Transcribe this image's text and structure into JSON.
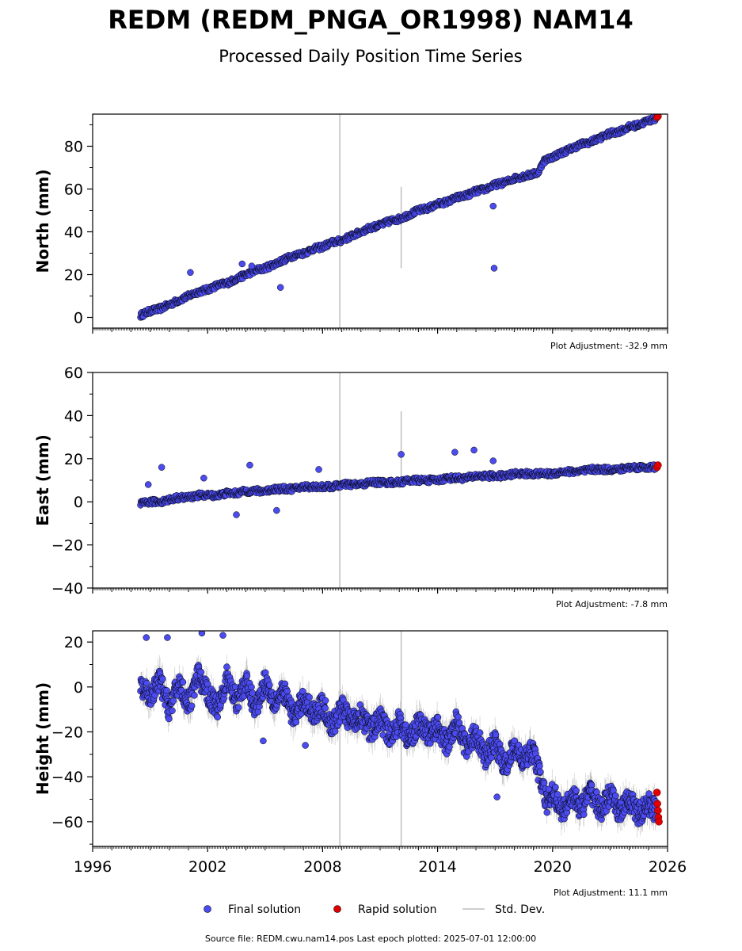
{
  "title": "REDM (REDM_PNGA_OR1998) NAM14",
  "subtitle": "Processed Daily Position Time Series",
  "footer": "Source file: REDM.cwu.nam14.pos  Last epoch plotted: 2025-07-01 12:00:00",
  "legend": {
    "final": "Final solution",
    "rapid": "Rapid solution",
    "std": "Std. Dev."
  },
  "colors": {
    "final": "#4b4bf0",
    "rapid": "#e00000",
    "std": "#bfbfbf",
    "marker_edge": "#000000"
  },
  "chart_data": [
    {
      "type": "scatter",
      "ylabel": "North (mm)",
      "adjustment": "Plot Adjustment: -32.9 mm",
      "xlim": [
        1996,
        2026
      ],
      "ylim": [
        -5,
        95
      ],
      "yticks": [
        0,
        20,
        40,
        60,
        80
      ],
      "xticks": [
        1996,
        2002,
        2008,
        2014,
        2020,
        2026
      ],
      "show_xtick_labels": false,
      "series": [
        {
          "name": "Final solution",
          "points": [
            [
              1998.5,
              1
            ],
            [
              1999.0,
              3
            ],
            [
              1999.5,
              4
            ],
            [
              2000.0,
              6
            ],
            [
              2000.5,
              8
            ],
            [
              2001.0,
              10
            ],
            [
              2001.5,
              12
            ],
            [
              2002.0,
              13
            ],
            [
              2002.5,
              15
            ],
            [
              2003.0,
              16
            ],
            [
              2003.5,
              18
            ],
            [
              2004.0,
              20
            ],
            [
              2004.5,
              22
            ],
            [
              2005.0,
              23
            ],
            [
              2005.5,
              25
            ],
            [
              2006.0,
              27
            ],
            [
              2006.5,
              29
            ],
            [
              2007.0,
              30
            ],
            [
              2007.5,
              32
            ],
            [
              2008.0,
              33
            ],
            [
              2008.5,
              35
            ],
            [
              2009.0,
              36
            ],
            [
              2009.5,
              38
            ],
            [
              2010.0,
              40
            ],
            [
              2010.5,
              42
            ],
            [
              2011.0,
              43
            ],
            [
              2011.5,
              45
            ],
            [
              2012.0,
              46
            ],
            [
              2012.5,
              48
            ],
            [
              2013.0,
              50
            ],
            [
              2013.5,
              51
            ],
            [
              2014.0,
              53
            ],
            [
              2014.5,
              54
            ],
            [
              2015.0,
              56
            ],
            [
              2015.5,
              57
            ],
            [
              2016.0,
              59
            ],
            [
              2016.5,
              60
            ],
            [
              2017.0,
              62
            ],
            [
              2017.5,
              63
            ],
            [
              2018.0,
              65
            ],
            [
              2018.5,
              66
            ],
            [
              2019.0,
              67
            ],
            [
              2019.3,
              68
            ],
            [
              2019.5,
              73
            ],
            [
              2020.0,
              75
            ],
            [
              2020.5,
              77
            ],
            [
              2021.0,
              79
            ],
            [
              2021.5,
              81
            ],
            [
              2022.0,
              82
            ],
            [
              2022.5,
              84
            ],
            [
              2023.0,
              86
            ],
            [
              2023.5,
              87
            ],
            [
              2024.0,
              89
            ],
            [
              2024.5,
              90
            ],
            [
              2025.0,
              92
            ],
            [
              2025.4,
              93
            ]
          ]
        },
        {
          "name": "Rapid solution",
          "points": [
            [
              2025.45,
              93.5
            ],
            [
              2025.5,
              94
            ]
          ]
        }
      ],
      "outliers": [
        [
          2001.1,
          21
        ],
        [
          2003.8,
          25
        ],
        [
          2004.3,
          24
        ],
        [
          2005.8,
          14
        ],
        [
          2016.9,
          52
        ],
        [
          2016.95,
          23
        ]
      ],
      "std_lines": [
        [
          2008.9,
          -5,
          95
        ],
        [
          2012.1,
          23,
          61
        ]
      ]
    },
    {
      "type": "scatter",
      "ylabel": "East (mm)",
      "adjustment": "Plot Adjustment: -7.8 mm",
      "xlim": [
        1996,
        2026
      ],
      "ylim": [
        -40,
        60
      ],
      "yticks": [
        -40,
        -20,
        0,
        20,
        40,
        60
      ],
      "xticks": [
        1996,
        2002,
        2008,
        2014,
        2020,
        2026
      ],
      "show_xtick_labels": false,
      "series": [
        {
          "name": "Final solution",
          "points": [
            [
              1998.5,
              -1
            ],
            [
              1999.0,
              0
            ],
            [
              1999.5,
              0
            ],
            [
              2000.0,
              1
            ],
            [
              2000.5,
              2
            ],
            [
              2001.0,
              2
            ],
            [
              2001.5,
              3
            ],
            [
              2002.0,
              3
            ],
            [
              2002.5,
              3
            ],
            [
              2003.0,
              4
            ],
            [
              2003.5,
              4
            ],
            [
              2004.0,
              5
            ],
            [
              2004.5,
              5
            ],
            [
              2005.0,
              5
            ],
            [
              2005.5,
              6
            ],
            [
              2006.0,
              6
            ],
            [
              2006.5,
              6
            ],
            [
              2007.0,
              7
            ],
            [
              2007.5,
              7
            ],
            [
              2008.0,
              7
            ],
            [
              2008.5,
              7
            ],
            [
              2009.0,
              8
            ],
            [
              2009.5,
              8
            ],
            [
              2010.0,
              8
            ],
            [
              2010.5,
              9
            ],
            [
              2011.0,
              9
            ],
            [
              2011.5,
              9
            ],
            [
              2012.0,
              9
            ],
            [
              2012.5,
              10
            ],
            [
              2013.0,
              10
            ],
            [
              2013.5,
              10
            ],
            [
              2014.0,
              10
            ],
            [
              2014.5,
              11
            ],
            [
              2015.0,
              11
            ],
            [
              2015.5,
              11
            ],
            [
              2016.0,
              12
            ],
            [
              2016.5,
              12
            ],
            [
              2017.0,
              12
            ],
            [
              2017.5,
              12
            ],
            [
              2018.0,
              13
            ],
            [
              2018.5,
              13
            ],
            [
              2019.0,
              13
            ],
            [
              2019.5,
              13
            ],
            [
              2020.0,
              13
            ],
            [
              2020.5,
              14
            ],
            [
              2021.0,
              14
            ],
            [
              2021.5,
              14
            ],
            [
              2022.0,
              15
            ],
            [
              2022.5,
              15
            ],
            [
              2023.0,
              15
            ],
            [
              2023.5,
              15
            ],
            [
              2024.0,
              16
            ],
            [
              2024.5,
              16
            ],
            [
              2025.0,
              16
            ],
            [
              2025.4,
              16
            ]
          ]
        },
        {
          "name": "Rapid solution",
          "points": [
            [
              2025.45,
              16
            ],
            [
              2025.5,
              17
            ]
          ]
        }
      ],
      "outliers": [
        [
          1998.9,
          8
        ],
        [
          1999.6,
          16
        ],
        [
          2001.8,
          11
        ],
        [
          2003.5,
          -6
        ],
        [
          2004.2,
          17
        ],
        [
          2005.6,
          -4
        ],
        [
          2007.8,
          15
        ],
        [
          2012.1,
          22
        ],
        [
          2014.9,
          23
        ],
        [
          2015.9,
          24
        ],
        [
          2016.9,
          19
        ]
      ],
      "std_lines": [
        [
          2008.9,
          -40,
          60
        ],
        [
          2012.1,
          7,
          42
        ]
      ]
    },
    {
      "type": "scatter",
      "ylabel": "Height (mm)",
      "adjustment": "Plot Adjustment: 11.1 mm",
      "xlim": [
        1996,
        2026
      ],
      "ylim": [
        -71,
        25
      ],
      "yticks": [
        -60,
        -40,
        -20,
        0,
        20
      ],
      "xticks": [
        1996,
        2002,
        2008,
        2014,
        2020,
        2026
      ],
      "show_xtick_labels": true,
      "series": [
        {
          "name": "Final solution",
          "points": [
            [
              1998.5,
              0
            ],
            [
              1999.0,
              -5
            ],
            [
              1999.5,
              3
            ],
            [
              2000.0,
              -10
            ],
            [
              2000.5,
              2
            ],
            [
              2001.0,
              -8
            ],
            [
              2001.5,
              5
            ],
            [
              2002.0,
              -3
            ],
            [
              2002.5,
              -9
            ],
            [
              2003.0,
              4
            ],
            [
              2003.5,
              -6
            ],
            [
              2004.0,
              2
            ],
            [
              2004.5,
              -10
            ],
            [
              2005.0,
              3
            ],
            [
              2005.5,
              -7
            ],
            [
              2006.0,
              -2
            ],
            [
              2006.5,
              -14
            ],
            [
              2007.0,
              -5
            ],
            [
              2007.5,
              -12
            ],
            [
              2008.0,
              -8
            ],
            [
              2008.5,
              -18
            ],
            [
              2009.0,
              -9
            ],
            [
              2009.5,
              -16
            ],
            [
              2010.0,
              -12
            ],
            [
              2010.5,
              -20
            ],
            [
              2011.0,
              -14
            ],
            [
              2011.5,
              -22
            ],
            [
              2012.0,
              -15
            ],
            [
              2012.5,
              -24
            ],
            [
              2013.0,
              -16
            ],
            [
              2013.5,
              -21
            ],
            [
              2014.0,
              -18
            ],
            [
              2014.5,
              -26
            ],
            [
              2015.0,
              -14
            ],
            [
              2015.5,
              -28
            ],
            [
              2016.0,
              -20
            ],
            [
              2016.5,
              -32
            ],
            [
              2017.0,
              -24
            ],
            [
              2017.5,
              -36
            ],
            [
              2018.0,
              -27
            ],
            [
              2018.5,
              -33
            ],
            [
              2019.0,
              -28
            ],
            [
              2019.4,
              -42
            ],
            [
              2019.7,
              -52
            ],
            [
              2020.0,
              -46
            ],
            [
              2020.5,
              -56
            ],
            [
              2021.0,
              -48
            ],
            [
              2021.5,
              -54
            ],
            [
              2022.0,
              -46
            ],
            [
              2022.5,
              -55
            ],
            [
              2023.0,
              -48
            ],
            [
              2023.5,
              -56
            ],
            [
              2024.0,
              -50
            ],
            [
              2024.5,
              -57
            ],
            [
              2025.0,
              -52
            ],
            [
              2025.4,
              -55
            ]
          ]
        },
        {
          "name": "Rapid solution",
          "points": [
            [
              2025.45,
              -47
            ],
            [
              2025.47,
              -52
            ],
            [
              2025.5,
              -55
            ],
            [
              2025.52,
              -58
            ],
            [
              2025.55,
              -60
            ]
          ]
        }
      ],
      "outliers": [
        [
          1998.8,
          22
        ],
        [
          1999.9,
          22
        ],
        [
          2001.7,
          24
        ],
        [
          2002.8,
          23
        ],
        [
          2004.9,
          -24
        ],
        [
          2007.1,
          -26
        ],
        [
          2017.1,
          -49
        ]
      ],
      "std_lines": [
        [
          2008.9,
          -71,
          25
        ],
        [
          2012.1,
          -71,
          25
        ]
      ]
    }
  ]
}
